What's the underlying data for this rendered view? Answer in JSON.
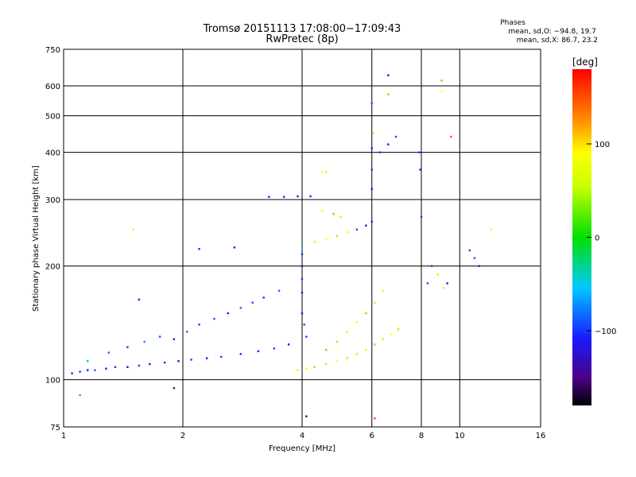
{
  "chart_data": {
    "type": "scatter",
    "title": "Tromsø 20151113 17:08:00−17:09:43",
    "subtitle": "RwPretec (8p)",
    "xlabel": "Frequency [MHz]",
    "ylabel": "Stationary phase Virtual Height [km]",
    "xscale": "log",
    "yscale": "log",
    "xlim": [
      1,
      16
    ],
    "ylim": [
      75,
      750
    ],
    "x_ticks": [
      1,
      2,
      4,
      6,
      8,
      10,
      16
    ],
    "y_ticks": [
      75,
      100,
      200,
      300,
      400,
      500,
      600,
      750
    ],
    "grid": true,
    "phase_stats": {
      "heading": "Phases",
      "line1": "mean, sd,O: −94.8, 19.7",
      "line2": "mean, sd,X:  86.7, 23.2"
    },
    "colorbar": {
      "label": "[deg]",
      "ticks": [
        "100",
        "0",
        "−100"
      ],
      "tick_values": [
        100,
        0,
        -100
      ],
      "range": [
        -180,
        180
      ],
      "colormap": "rainbow"
    },
    "series": [
      {
        "values": [
          [
            1.05,
            104,
            -110
          ],
          [
            1.1,
            105,
            -100
          ],
          [
            1.15,
            106,
            -120
          ],
          [
            1.2,
            106,
            -90
          ],
          [
            1.28,
            107,
            -115
          ],
          [
            1.35,
            108,
            -100
          ],
          [
            1.45,
            108,
            -125
          ],
          [
            1.55,
            109,
            -95
          ],
          [
            1.65,
            110,
            -110
          ],
          [
            1.8,
            111,
            -105
          ],
          [
            1.95,
            112,
            -120
          ],
          [
            2.1,
            113,
            -100
          ],
          [
            2.3,
            114,
            -110
          ],
          [
            2.5,
            115,
            -95
          ],
          [
            2.8,
            117,
            -105
          ],
          [
            3.1,
            119,
            -115
          ],
          [
            3.4,
            121,
            -100
          ],
          [
            3.7,
            124,
            -110
          ],
          [
            1.15,
            112,
            -60
          ],
          [
            1.3,
            118,
            -80
          ],
          [
            1.45,
            122,
            -100
          ],
          [
            1.6,
            126,
            -70
          ],
          [
            1.75,
            130,
            -90
          ],
          [
            1.9,
            128,
            -120
          ],
          [
            2.05,
            134,
            -80
          ],
          [
            2.2,
            140,
            -100
          ],
          [
            2.4,
            145,
            -90
          ],
          [
            2.6,
            150,
            -110
          ],
          [
            2.8,
            155,
            -80
          ],
          [
            3.0,
            160,
            -95
          ],
          [
            3.2,
            165,
            -100
          ],
          [
            3.5,
            172,
            -85
          ],
          [
            3.9,
            106,
            100
          ],
          [
            4.1,
            107,
            95
          ],
          [
            4.3,
            108,
            110
          ],
          [
            4.6,
            110,
            100
          ],
          [
            4.9,
            112,
            90
          ],
          [
            5.2,
            114,
            105
          ],
          [
            5.5,
            117,
            100
          ],
          [
            5.8,
            120,
            95
          ],
          [
            6.1,
            124,
            110
          ],
          [
            6.4,
            128,
            100
          ],
          [
            6.7,
            132,
            90
          ],
          [
            7.0,
            136,
            105
          ],
          [
            4.6,
            120,
            20
          ],
          [
            4.9,
            126,
            40
          ],
          [
            5.2,
            134,
            60
          ],
          [
            5.5,
            142,
            80
          ],
          [
            5.8,
            150,
            30
          ],
          [
            6.1,
            160,
            50
          ],
          [
            6.4,
            172,
            70
          ],
          [
            4.0,
            150,
            -110
          ],
          [
            4.0,
            170,
            -120
          ],
          [
            4.0,
            185,
            -100
          ],
          [
            4.0,
            200,
            -115
          ],
          [
            4.0,
            215,
            -105
          ],
          [
            4.05,
            140,
            -95
          ],
          [
            4.1,
            130,
            -100
          ],
          [
            3.3,
            305,
            -110
          ],
          [
            3.6,
            305,
            -100
          ],
          [
            3.9,
            306,
            -115
          ],
          [
            4.2,
            306,
            -105
          ],
          [
            4.0,
            228,
            -60
          ],
          [
            4.3,
            232,
            60
          ],
          [
            4.6,
            236,
            90
          ],
          [
            4.9,
            240,
            110
          ],
          [
            5.2,
            246,
            80
          ],
          [
            5.5,
            250,
            -100
          ],
          [
            5.8,
            256,
            -110
          ],
          [
            6.0,
            262,
            -105
          ],
          [
            4.5,
            280,
            80
          ],
          [
            4.8,
            275,
            120
          ],
          [
            5.0,
            270,
            100
          ],
          [
            6.0,
            320,
            -110
          ],
          [
            6.0,
            360,
            -100
          ],
          [
            6.0,
            410,
            -105
          ],
          [
            6.05,
            450,
            100
          ],
          [
            6.0,
            540,
            -90
          ],
          [
            6.3,
            400,
            -100
          ],
          [
            6.6,
            420,
            -110
          ],
          [
            6.9,
            440,
            -95
          ],
          [
            6.6,
            640,
            -120
          ],
          [
            6.6,
            570,
            120
          ],
          [
            7.9,
            400,
            -100
          ],
          [
            7.95,
            360,
            -110
          ],
          [
            8.0,
            270,
            -105
          ],
          [
            8.5,
            200,
            -100
          ],
          [
            8.3,
            180,
            -90
          ],
          [
            8.8,
            190,
            60
          ],
          [
            9.1,
            175,
            100
          ],
          [
            9.3,
            180,
            -110
          ],
          [
            9.0,
            620,
            120
          ],
          [
            9.0,
            580,
            90
          ],
          [
            9.5,
            440,
            150
          ],
          [
            10.6,
            220,
            -100
          ],
          [
            10.9,
            210,
            -90
          ],
          [
            11.2,
            200,
            -110
          ],
          [
            12.0,
            250,
            80
          ],
          [
            4.5,
            355,
            90
          ],
          [
            4.6,
            355,
            100
          ],
          [
            2.2,
            222,
            -100
          ],
          [
            2.7,
            224,
            -110
          ],
          [
            1.5,
            250,
            70
          ],
          [
            1.55,
            163,
            -120
          ],
          [
            1.9,
            95,
            -150
          ],
          [
            1.1,
            91,
            140
          ],
          [
            4.1,
            80,
            -150
          ],
          [
            6.1,
            79,
            150
          ]
        ]
      }
    ]
  }
}
